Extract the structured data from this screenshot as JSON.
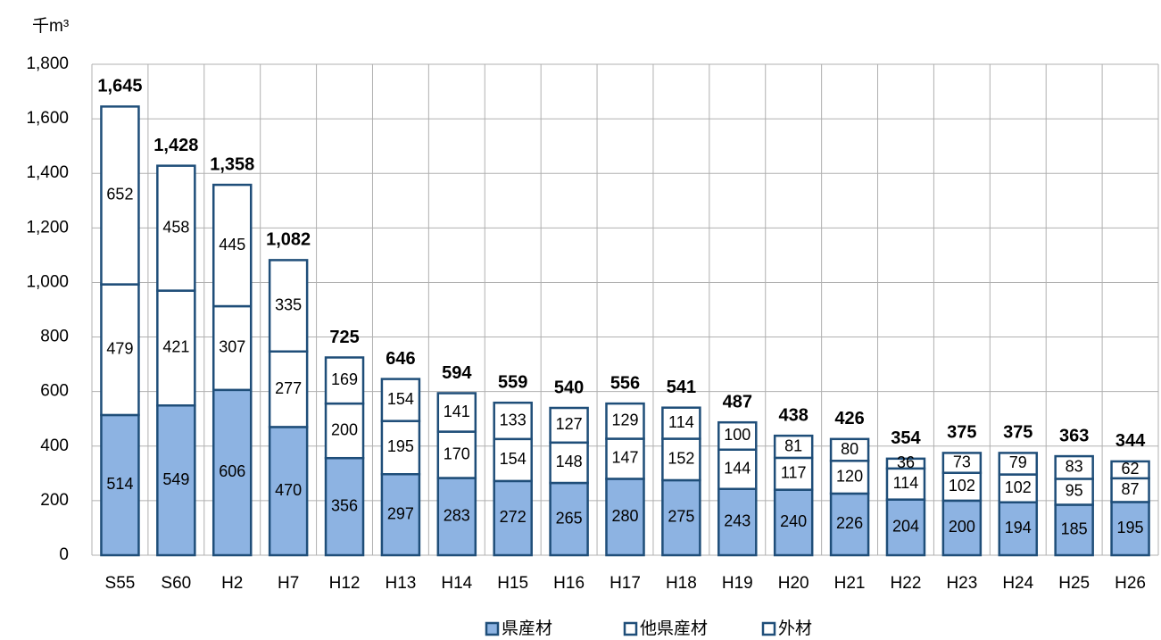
{
  "chart_data": {
    "type": "stacked_bar",
    "y_unit": "千m³",
    "categories": [
      "S55",
      "S60",
      "H2",
      "H7",
      "H12",
      "H13",
      "H14",
      "H15",
      "H16",
      "H17",
      "H18",
      "H19",
      "H20",
      "H21",
      "H22",
      "H23",
      "H24",
      "H25",
      "H26"
    ],
    "series": [
      {
        "name": "県産材",
        "color": "#8db3e2",
        "values": [
          514,
          549,
          606,
          470,
          356,
          297,
          283,
          272,
          265,
          280,
          275,
          243,
          240,
          226,
          204,
          200,
          194,
          185,
          195
        ]
      },
      {
        "name": "他県産材",
        "color": "#ffffff",
        "values": [
          479,
          421,
          307,
          277,
          200,
          195,
          170,
          154,
          148,
          147,
          152,
          144,
          117,
          120,
          114,
          102,
          102,
          95,
          87
        ]
      },
      {
        "name": "外材",
        "color": "#ffffff",
        "values": [
          652,
          458,
          445,
          335,
          169,
          154,
          141,
          133,
          127,
          129,
          114,
          100,
          81,
          80,
          36,
          73,
          79,
          83,
          62
        ]
      }
    ],
    "totals": {
      "values": [
        1645,
        1428,
        1358,
        1082,
        725,
        646,
        594,
        559,
        540,
        556,
        541,
        487,
        438,
        426,
        354,
        375,
        375,
        363,
        344
      ],
      "value_labels": [
        "1,645",
        "1,428",
        "1,358",
        "1,082",
        "725",
        "646",
        "594",
        "559",
        "540",
        "556",
        "541",
        "487",
        "438",
        "426",
        "354",
        "375",
        "375",
        "363",
        "344"
      ]
    },
    "border_color": "#1f4e79",
    "ylim": [
      0,
      1800
    ],
    "yticks": [
      0,
      200,
      400,
      600,
      800,
      {
        "value": 1000,
        "label": "1,000"
      },
      {
        "value": 1200,
        "label": "1,200"
      },
      {
        "value": 1400,
        "label": "1,400"
      },
      {
        "value": 1600,
        "label": "1,600"
      },
      {
        "value": 1800,
        "label": "1,800"
      }
    ],
    "grid": true,
    "legend": "bottom"
  }
}
